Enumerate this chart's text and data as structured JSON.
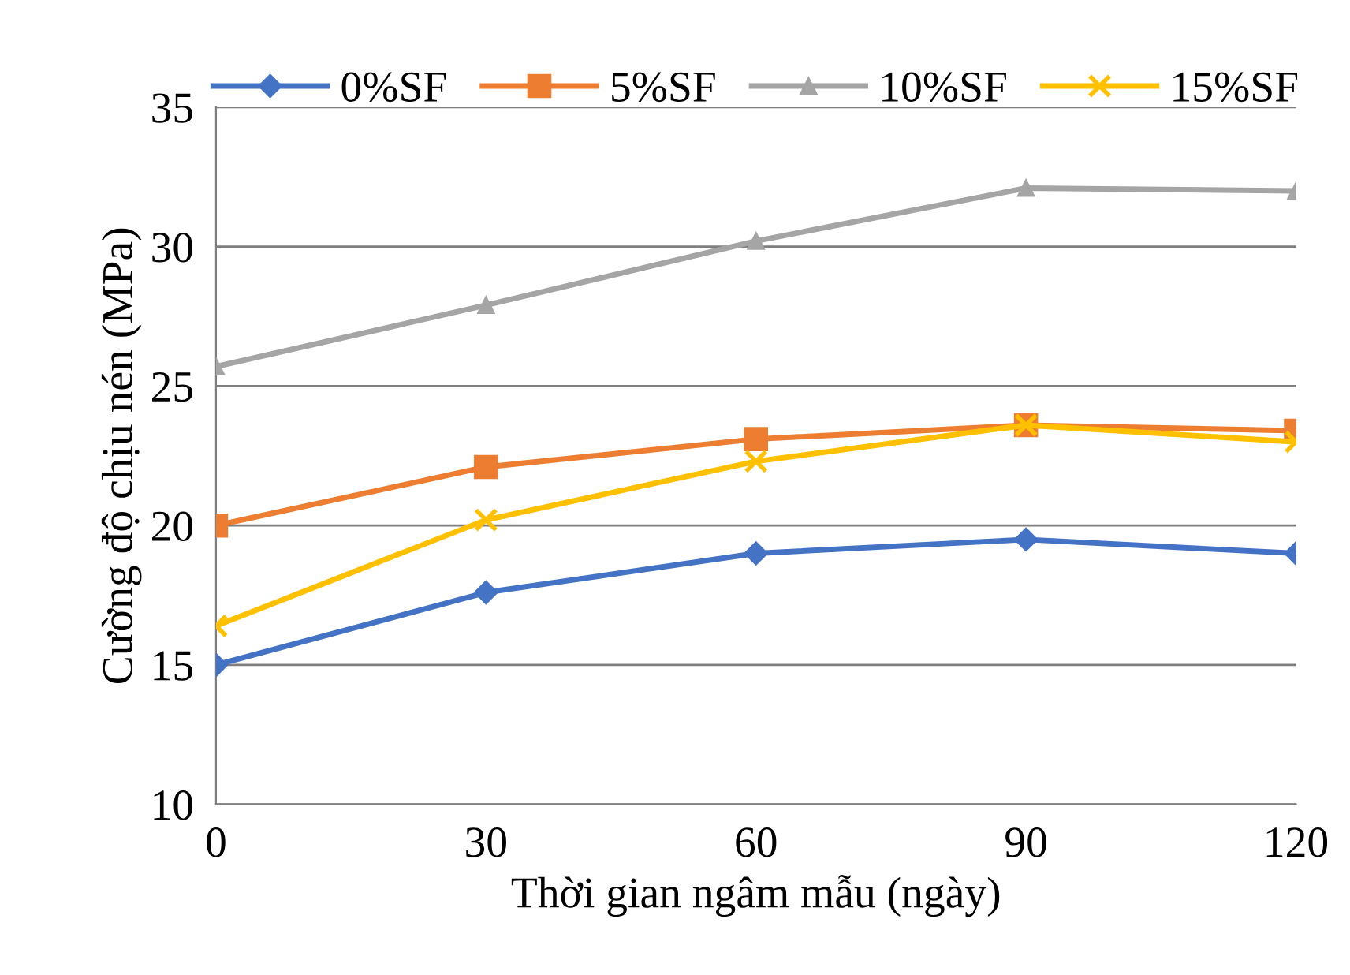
{
  "chart_data": {
    "type": "line",
    "xlabel": "Thời gian ngâm mẫu (ngày)",
    "ylabel": "Cường độ chịu nén (MPa)",
    "x": [
      0,
      30,
      60,
      90,
      120
    ],
    "xlim": [
      0,
      120
    ],
    "xticks": [
      0,
      30,
      60,
      90,
      120
    ],
    "ylim": [
      10,
      35
    ],
    "yticks": [
      10,
      15,
      20,
      25,
      30,
      35
    ],
    "grid": "y",
    "legend": "top",
    "line_style": "solid",
    "series": [
      {
        "name": "0%SF",
        "color": "#4472c4",
        "marker": "diamond",
        "values": [
          15.0,
          17.6,
          19.0,
          19.5,
          19.0
        ]
      },
      {
        "name": "5%SF",
        "color": "#ed7d31",
        "marker": "square",
        "values": [
          20.0,
          22.1,
          23.1,
          23.6,
          23.4
        ]
      },
      {
        "name": "10%SF",
        "color": "#a5a5a5",
        "marker": "triangle",
        "values": [
          25.7,
          27.9,
          30.2,
          32.1,
          32.0
        ]
      },
      {
        "name": "15%SF",
        "color": "#ffc000",
        "marker": "cross",
        "values": [
          16.4,
          20.2,
          22.3,
          23.6,
          23.0
        ]
      }
    ]
  }
}
